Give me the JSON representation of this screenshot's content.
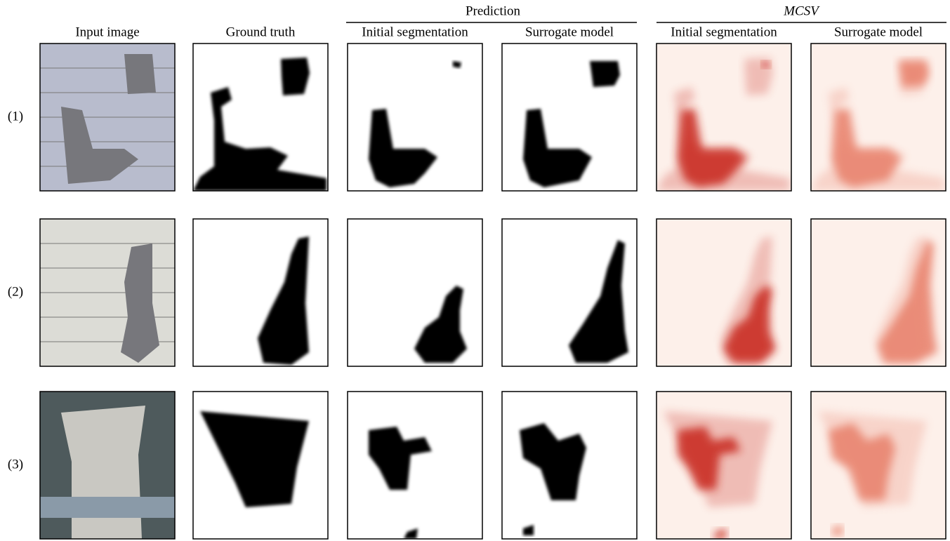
{
  "groups": [
    {
      "label": "Prediction"
    },
    {
      "label": "MCSV"
    }
  ],
  "columns": [
    "Input image",
    "Ground truth",
    "Initial segmentation",
    "Surrogate model",
    "Initial segmentation",
    "Surrogate model"
  ],
  "rows": [
    "(1)",
    "(2)",
    "(3)"
  ]
}
